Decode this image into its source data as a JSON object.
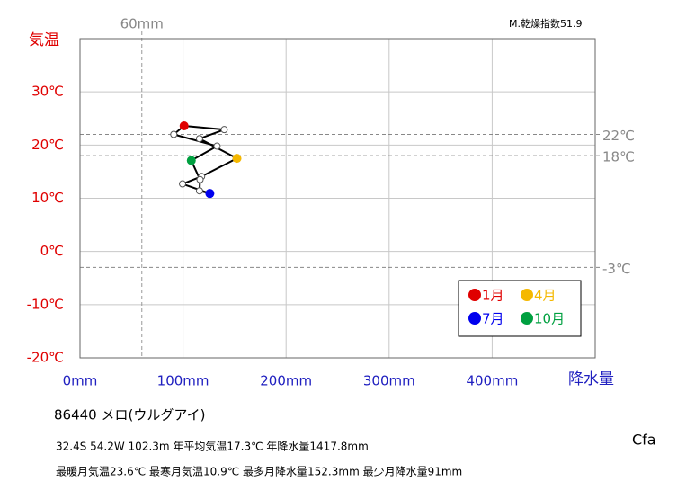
{
  "chart_data": {
    "type": "climograph",
    "y_label": "気温",
    "x_label": "降水量",
    "index_label": "M.乾燥指数51.9",
    "station": "86440 メロ(ウルグアイ)",
    "info1": "32.4S 54.2W 102.3m 年平均気温17.3℃ 年降水量1417.8mm",
    "info2": "最暖月気温23.6℃ 最寒月気温10.9℃ 最多月降水量152.3mm 最少月降水量91mm",
    "climate_class": "Cfa",
    "x": [
      101,
      140,
      116,
      152.3,
      118,
      99.5,
      126,
      116,
      116.5,
      108,
      133,
      91
    ],
    "values": [
      23.6,
      22.9,
      21.2,
      17.5,
      14.1,
      12.7,
      10.9,
      11.4,
      13.5,
      17.1,
      19.8,
      22.0
    ],
    "highlights": [
      {
        "name": "1月",
        "color": "#e00000",
        "point": 0
      },
      {
        "name": "4月",
        "color": "#f5b800",
        "point": 3
      },
      {
        "name": "7月",
        "color": "#0000ee",
        "point": 6
      },
      {
        "name": "10月",
        "color": "#00a040",
        "point": 9
      }
    ],
    "line_color": "#000000",
    "xlim": [
      0,
      500
    ],
    "ylim": [
      -20,
      40
    ],
    "xticks": [
      {
        "value": 0,
        "label": "0mm"
      },
      {
        "value": 100,
        "label": "100mm"
      },
      {
        "value": 200,
        "label": "200mm"
      },
      {
        "value": 300,
        "label": "300mm"
      },
      {
        "value": 400,
        "label": "400mm"
      }
    ],
    "yticks": [
      {
        "value": -20,
        "label": "-20℃"
      },
      {
        "value": -10,
        "label": "-10℃"
      },
      {
        "value": 0,
        "label": "0℃"
      },
      {
        "value": 10,
        "label": "10℃"
      },
      {
        "value": 20,
        "label": "20℃"
      },
      {
        "value": 30,
        "label": "30℃"
      }
    ],
    "h_refs": [
      {
        "value": 22,
        "label": "22℃"
      },
      {
        "value": 18,
        "label": "18℃"
      },
      {
        "value": -3,
        "label": "-3℃"
      }
    ],
    "v_refs": [
      {
        "value": 60,
        "label": "60mm"
      }
    ],
    "grid": true
  }
}
